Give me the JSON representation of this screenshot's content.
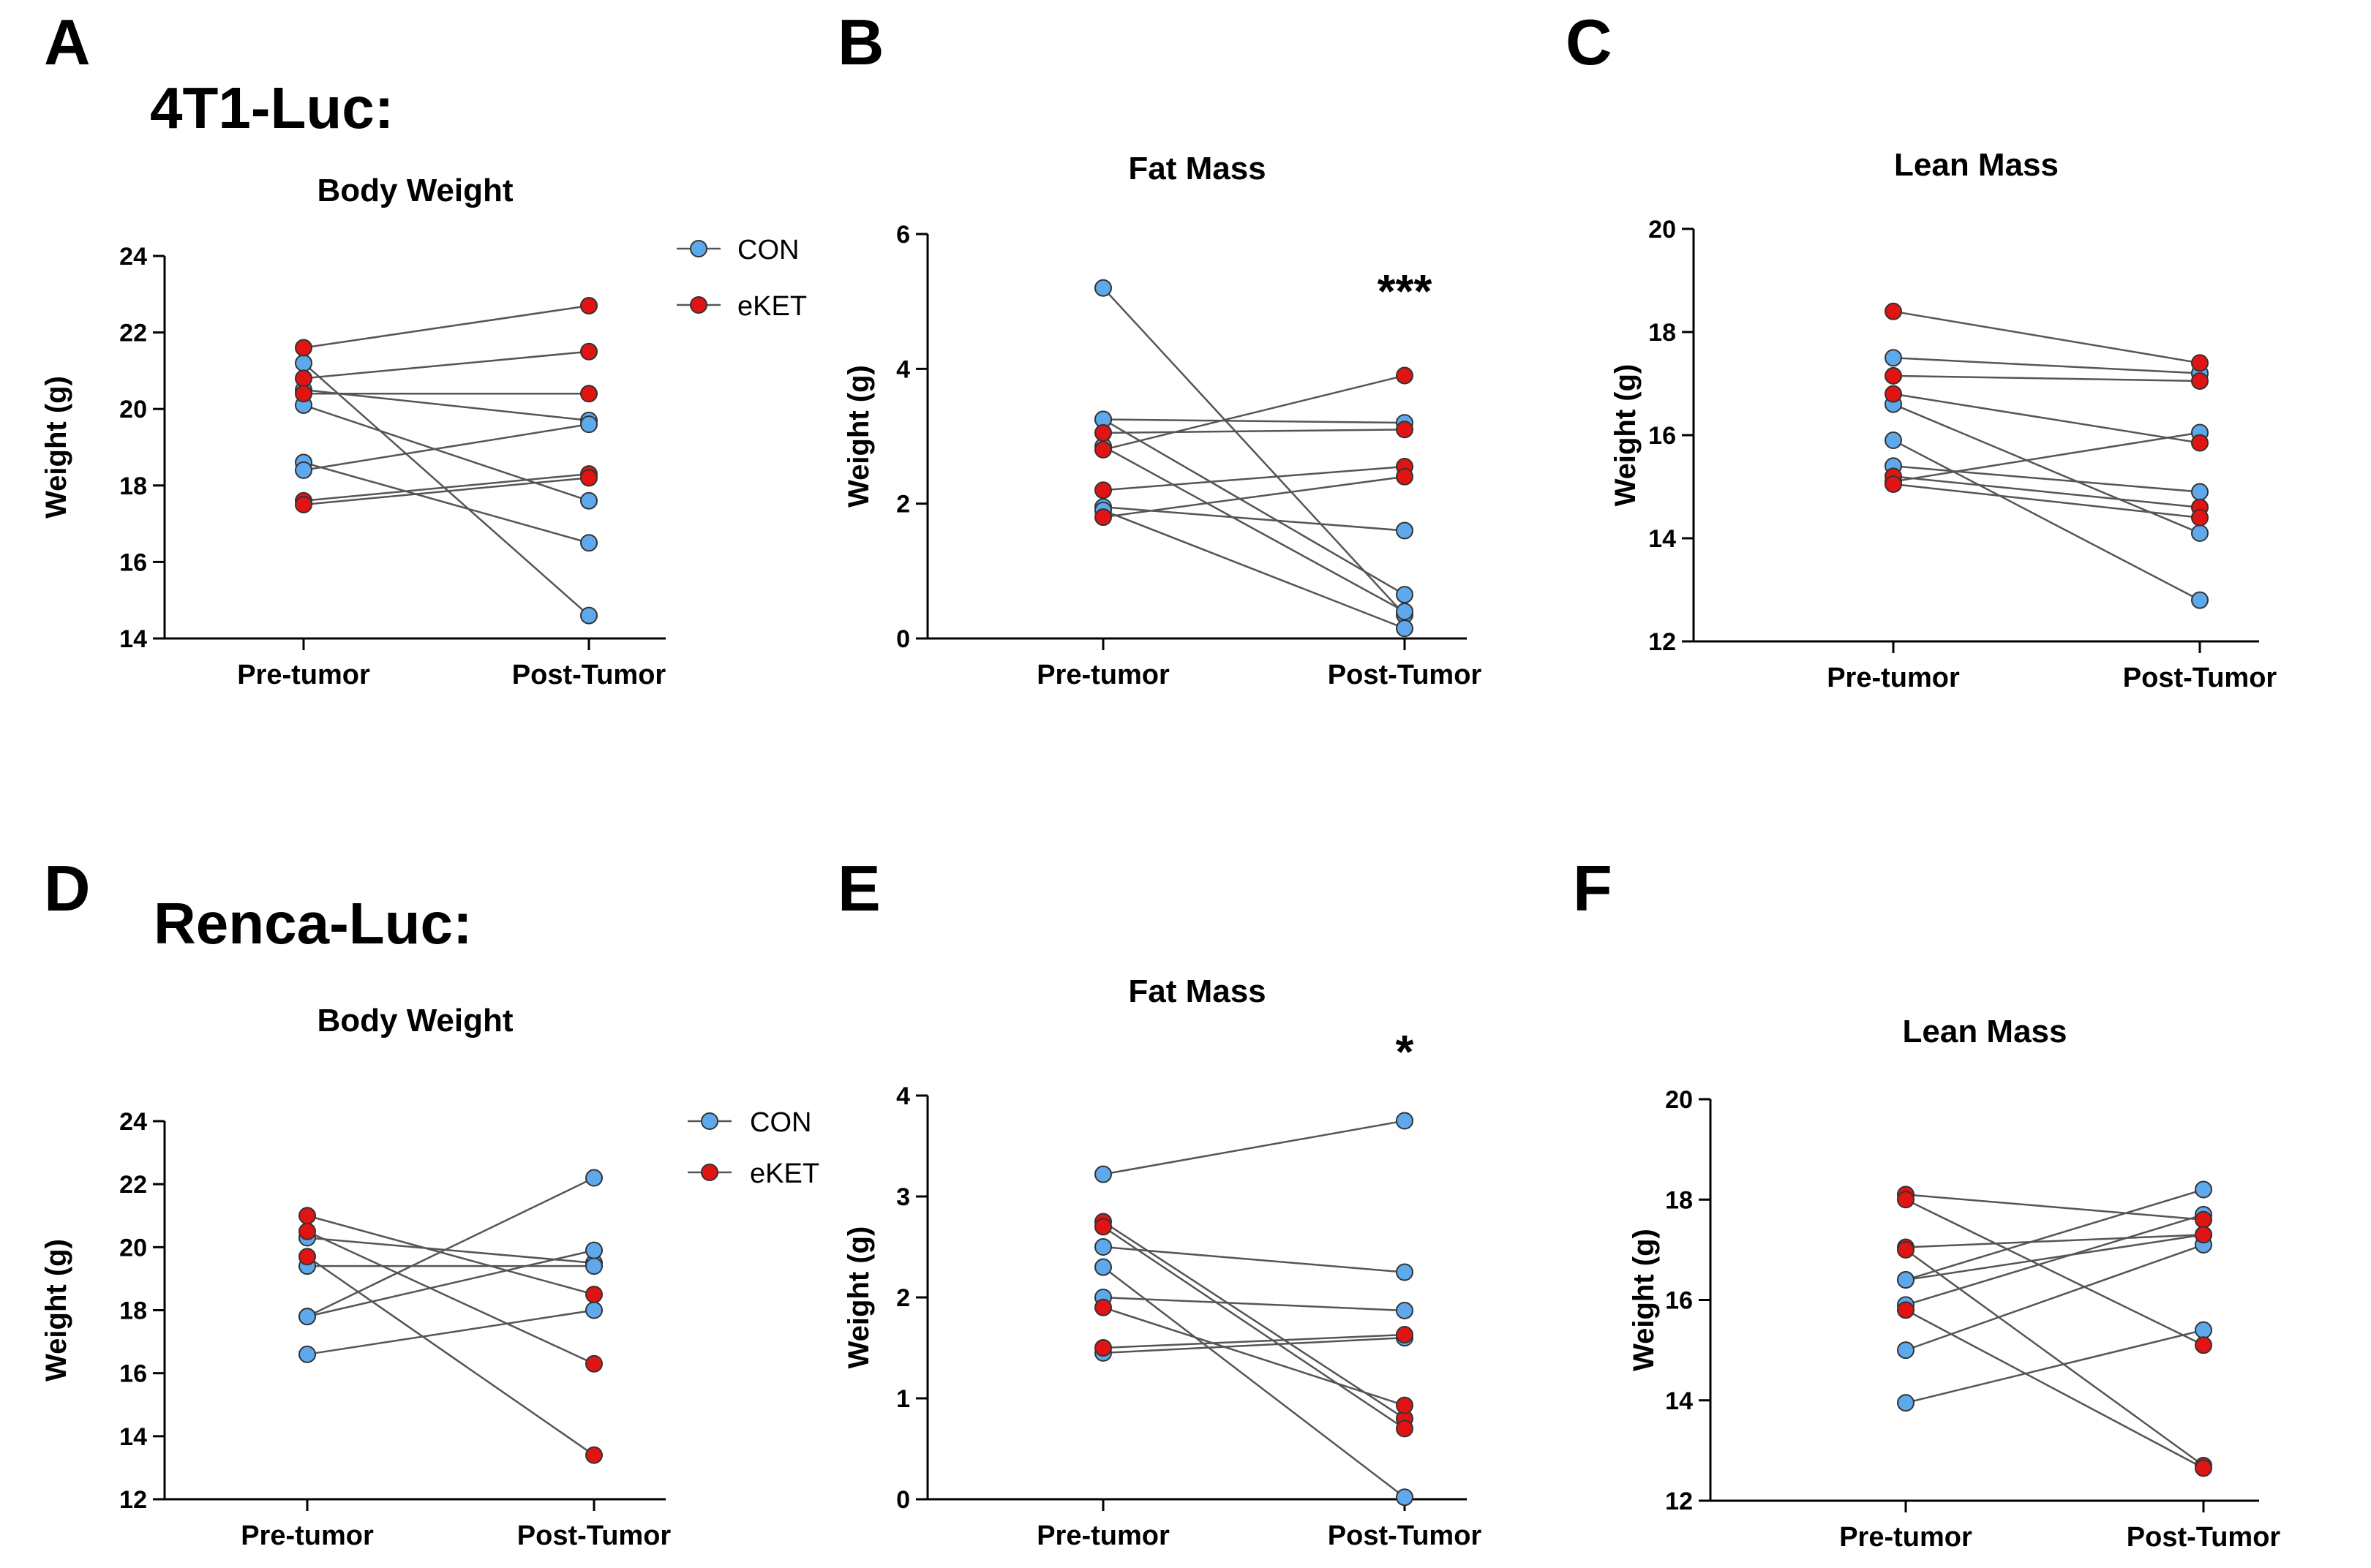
{
  "colors": {
    "CON": "#5ea9ec",
    "eKET": "#e11414"
  },
  "sections": [
    {
      "label": "4T1-Luc:"
    },
    {
      "label": "Renca-Luc:"
    }
  ],
  "legend": {
    "entries": [
      {
        "name": "CON",
        "color": "#5ea9ec"
      },
      {
        "name": "eKET",
        "color": "#e11414"
      }
    ]
  },
  "chart_data": [
    {
      "panel": "A",
      "type": "line",
      "title": "Body Weight",
      "ylabel": "Weight (g)",
      "xlabel": "",
      "categories": [
        "Pre-tumor",
        "Post-Tumor"
      ],
      "ylim": [
        14,
        24
      ],
      "yticks": [
        14,
        16,
        18,
        20,
        22,
        24
      ],
      "significance": "",
      "series": [
        {
          "group": "CON",
          "values": [
            20.5,
            19.7
          ]
        },
        {
          "group": "CON",
          "values": [
            21.2,
            14.6
          ]
        },
        {
          "group": "CON",
          "values": [
            20.1,
            17.6
          ]
        },
        {
          "group": "CON",
          "values": [
            18.6,
            16.5
          ]
        },
        {
          "group": "CON",
          "values": [
            18.4,
            19.6
          ]
        },
        {
          "group": "eKET",
          "values": [
            21.6,
            22.7
          ]
        },
        {
          "group": "eKET",
          "values": [
            20.8,
            21.5
          ]
        },
        {
          "group": "eKET",
          "values": [
            20.4,
            20.4
          ]
        },
        {
          "group": "eKET",
          "values": [
            17.6,
            18.3
          ]
        },
        {
          "group": "eKET",
          "values": [
            17.5,
            18.2
          ]
        }
      ]
    },
    {
      "panel": "B",
      "type": "line",
      "title": "Fat Mass",
      "ylabel": "Weight (g)",
      "xlabel": "",
      "categories": [
        "Pre-tumor",
        "Post-Tumor"
      ],
      "ylim": [
        0,
        6
      ],
      "yticks": [
        0,
        2,
        4,
        6
      ],
      "significance": "***",
      "series": [
        {
          "group": "CON",
          "values": [
            5.2,
            0.35
          ]
        },
        {
          "group": "CON",
          "values": [
            3.25,
            3.2
          ]
        },
        {
          "group": "CON",
          "values": [
            2.85,
            0.4
          ]
        },
        {
          "group": "CON",
          "values": [
            1.95,
            1.6
          ]
        },
        {
          "group": "CON",
          "values": [
            1.9,
            0.15
          ]
        },
        {
          "group": "CON",
          "values": [
            3.25,
            0.65
          ]
        },
        {
          "group": "eKET",
          "values": [
            3.05,
            3.1
          ]
        },
        {
          "group": "eKET",
          "values": [
            2.8,
            3.9
          ]
        },
        {
          "group": "eKET",
          "values": [
            2.2,
            2.55
          ]
        },
        {
          "group": "eKET",
          "values": [
            1.8,
            2.4
          ]
        }
      ]
    },
    {
      "panel": "C",
      "type": "line",
      "title": "Lean Mass",
      "ylabel": "Weight (g)",
      "xlabel": "",
      "categories": [
        "Pre-tumor",
        "Post-Tumor"
      ],
      "ylim": [
        12,
        20
      ],
      "yticks": [
        12,
        14,
        16,
        18,
        20
      ],
      "significance": "",
      "series": [
        {
          "group": "CON",
          "values": [
            17.5,
            17.2
          ]
        },
        {
          "group": "CON",
          "values": [
            16.6,
            14.1
          ]
        },
        {
          "group": "CON",
          "values": [
            15.9,
            12.8
          ]
        },
        {
          "group": "CON",
          "values": [
            15.4,
            14.9
          ]
        },
        {
          "group": "CON",
          "values": [
            15.1,
            16.05
          ]
        },
        {
          "group": "eKET",
          "values": [
            18.4,
            17.4
          ]
        },
        {
          "group": "eKET",
          "values": [
            17.15,
            17.05
          ]
        },
        {
          "group": "eKET",
          "values": [
            16.8,
            15.85
          ]
        },
        {
          "group": "eKET",
          "values": [
            15.2,
            14.6
          ]
        },
        {
          "group": "eKET",
          "values": [
            15.05,
            14.4
          ]
        }
      ]
    },
    {
      "panel": "D",
      "type": "line",
      "title": "Body Weight",
      "ylabel": "Weight (g)",
      "xlabel": "",
      "categories": [
        "Pre-tumor",
        "Post-Tumor"
      ],
      "ylim": [
        12,
        24
      ],
      "yticks": [
        12,
        14,
        16,
        18,
        20,
        22,
        24
      ],
      "significance": "",
      "series": [
        {
          "group": "CON",
          "values": [
            20.3,
            19.5
          ]
        },
        {
          "group": "CON",
          "values": [
            19.4,
            19.4
          ]
        },
        {
          "group": "CON",
          "values": [
            17.8,
            22.2
          ]
        },
        {
          "group": "CON",
          "values": [
            17.8,
            19.9
          ]
        },
        {
          "group": "CON",
          "values": [
            16.6,
            18.0
          ]
        },
        {
          "group": "eKET",
          "values": [
            21.0,
            18.5
          ]
        },
        {
          "group": "eKET",
          "values": [
            20.5,
            16.3
          ]
        },
        {
          "group": "eKET",
          "values": [
            19.7,
            13.4
          ]
        }
      ]
    },
    {
      "panel": "E",
      "type": "line",
      "title": "Fat Mass",
      "ylabel": "Weight (g)",
      "xlabel": "",
      "categories": [
        "Pre-tumor",
        "Post-Tumor"
      ],
      "ylim": [
        0,
        4
      ],
      "yticks": [
        0,
        1,
        2,
        3,
        4
      ],
      "significance": "*",
      "series": [
        {
          "group": "CON",
          "values": [
            3.22,
            3.75
          ]
        },
        {
          "group": "CON",
          "values": [
            2.5,
            2.25
          ]
        },
        {
          "group": "CON",
          "values": [
            2.3,
            0.02
          ]
        },
        {
          "group": "CON",
          "values": [
            2.0,
            1.87
          ]
        },
        {
          "group": "CON",
          "values": [
            1.45,
            1.6
          ]
        },
        {
          "group": "eKET",
          "values": [
            2.75,
            0.8
          ]
        },
        {
          "group": "eKET",
          "values": [
            2.7,
            0.7
          ]
        },
        {
          "group": "eKET",
          "values": [
            1.9,
            0.93
          ]
        },
        {
          "group": "eKET",
          "values": [
            1.5,
            1.63
          ]
        }
      ]
    },
    {
      "panel": "F",
      "type": "line",
      "title": "Lean Mass",
      "ylabel": "Weight (g)",
      "xlabel": "",
      "categories": [
        "Pre-tumor",
        "Post-Tumor"
      ],
      "ylim": [
        12,
        20
      ],
      "yticks": [
        12,
        14,
        16,
        18,
        20
      ],
      "significance": "",
      "series": [
        {
          "group": "CON",
          "values": [
            16.4,
            18.2
          ]
        },
        {
          "group": "CON",
          "values": [
            16.4,
            17.3
          ]
        },
        {
          "group": "CON",
          "values": [
            15.9,
            17.7
          ]
        },
        {
          "group": "CON",
          "values": [
            15.0,
            17.1
          ]
        },
        {
          "group": "CON",
          "values": [
            13.95,
            15.4
          ]
        },
        {
          "group": "eKET",
          "values": [
            18.1,
            17.6
          ]
        },
        {
          "group": "eKET",
          "values": [
            18.0,
            15.1
          ]
        },
        {
          "group": "eKET",
          "values": [
            17.05,
            17.3
          ]
        },
        {
          "group": "eKET",
          "values": [
            17.0,
            12.7
          ]
        },
        {
          "group": "eKET",
          "values": [
            15.8,
            12.65
          ]
        }
      ]
    }
  ]
}
